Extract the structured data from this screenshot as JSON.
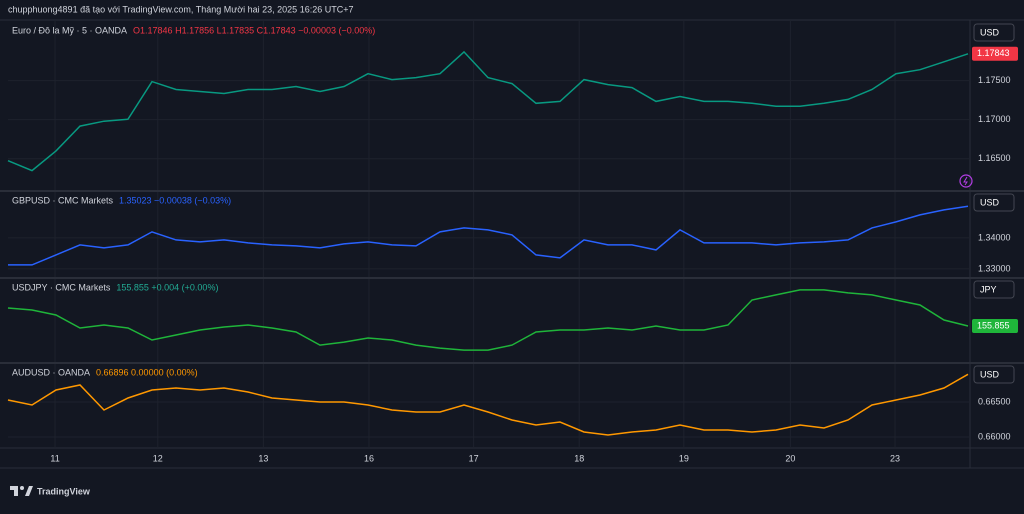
{
  "header": "chupphuong4891 đã tạo với TradingView.com, Tháng Mười hai 23, 2025 16:26 UTC+7",
  "footer": "TradingView",
  "x_axis": {
    "xlim": [
      0,
      100
    ],
    "x": [
      0,
      2.5,
      5,
      7.5,
      10,
      12.5,
      15,
      17.5,
      20,
      22.5,
      25,
      27.5,
      30,
      32.5,
      35,
      37.5,
      40,
      42.5,
      45,
      47.5,
      50,
      52.5,
      55,
      57.5,
      60,
      62.5,
      65,
      67.5,
      70,
      72.5,
      75,
      77.5,
      80,
      82.5,
      85,
      87.5,
      90,
      92.5,
      95,
      97.5,
      100
    ],
    "xticks": [
      {
        "value": 4.9,
        "label": "11"
      },
      {
        "value": 15.6,
        "label": "12"
      },
      {
        "value": 26.6,
        "label": "13"
      },
      {
        "value": 37.6,
        "label": "16"
      },
      {
        "value": 48.5,
        "label": "17"
      },
      {
        "value": 59.5,
        "label": "18"
      },
      {
        "value": 70.4,
        "label": "19"
      },
      {
        "value": 81.5,
        "label": "20"
      },
      {
        "value": 92.4,
        "label": "23"
      }
    ]
  },
  "chart_data": [
    {
      "type": "line",
      "symbol": "Euro / Đô la Mỹ · 5 · OANDA",
      "quote": "O1.17846 H1.17856 L1.17835 C1.17843 −0.00003 (−0.00%)",
      "quote_color": "#f23645",
      "currency": "USD",
      "color": "#089981",
      "ylim": [
        1.161,
        1.1825
      ],
      "yticks": [
        {
          "value": 1.175,
          "label": "1.17500"
        },
        {
          "value": 1.17,
          "label": "1.17000"
        },
        {
          "value": 1.165,
          "label": "1.16500"
        }
      ],
      "last_value": 1.17843,
      "last_color": "#f23645",
      "values": [
        1.16475,
        1.16348,
        1.16601,
        1.16918,
        1.16981,
        1.17006,
        1.17487,
        1.17386,
        1.17361,
        1.17335,
        1.17386,
        1.17386,
        1.17424,
        1.17361,
        1.17424,
        1.17589,
        1.17513,
        1.17538,
        1.17589,
        1.17867,
        1.17538,
        1.17462,
        1.17209,
        1.17234,
        1.17513,
        1.17449,
        1.17411,
        1.17234,
        1.17297,
        1.17234,
        1.17234,
        1.17209,
        1.17171,
        1.17171,
        1.17209,
        1.17259,
        1.17386,
        1.17589,
        1.17639,
        1.17741,
        1.17843
      ]
    },
    {
      "type": "line",
      "symbol": "GBPUSD · CMC Markets",
      "quote": "1.35023  −0.00038 (−0.03%)",
      "quote_color": "#2962ff",
      "currency": "USD",
      "color": "#2962ff",
      "ylim": [
        1.3274,
        1.3548
      ],
      "yticks": [
        {
          "value": 1.34,
          "label": "1.34000"
        },
        {
          "value": 1.33,
          "label": "1.33000"
        }
      ],
      "values": [
        1.33129,
        1.33129,
        1.33452,
        1.33774,
        1.33677,
        1.33774,
        1.34194,
        1.33935,
        1.33871,
        1.33935,
        1.33839,
        1.33774,
        1.33742,
        1.33677,
        1.33806,
        1.33871,
        1.33774,
        1.33742,
        1.34194,
        1.34323,
        1.34258,
        1.34097,
        1.33452,
        1.33355,
        1.33935,
        1.33774,
        1.33774,
        1.33613,
        1.34258,
        1.33839,
        1.33839,
        1.33839,
        1.33774,
        1.33839,
        1.33871,
        1.33935,
        1.34323,
        1.34516,
        1.34742,
        1.34903,
        1.35023
      ]
    },
    {
      "type": "line",
      "symbol": "USDJPY · CMC Markets",
      "quote": "155.855  +0.004 (+0.00%)",
      "quote_color": "#22ab94",
      "currency": "JPY",
      "color": "#1fb53a",
      "ylim": [
        154.06,
        158.2
      ],
      "yticks": [],
      "last_value": 155.855,
      "last_color": "#1fb53a",
      "values": [
        156.755,
        156.655,
        156.405,
        155.755,
        155.905,
        155.755,
        155.155,
        155.405,
        155.655,
        155.805,
        155.905,
        155.755,
        155.555,
        154.905,
        155.055,
        155.255,
        155.155,
        154.905,
        154.755,
        154.655,
        154.655,
        154.905,
        155.555,
        155.655,
        155.655,
        155.755,
        155.655,
        155.855,
        155.655,
        155.655,
        155.905,
        157.155,
        157.405,
        157.655,
        157.655,
        157.505,
        157.405,
        157.155,
        156.905,
        156.155,
        155.855
      ]
    },
    {
      "type": "line",
      "symbol": "AUDUSD · OANDA",
      "quote": "0.66896  0.00000 (0.00%)",
      "quote_color": "#ff9800",
      "currency": "USD",
      "color": "#ff9800",
      "ylim": [
        0.65857,
        0.67043
      ],
      "yticks": [
        {
          "value": 0.665,
          "label": "0.66500"
        },
        {
          "value": 0.66,
          "label": "0.66000"
        }
      ],
      "values": [
        0.66529,
        0.66457,
        0.66671,
        0.66743,
        0.66386,
        0.66557,
        0.66671,
        0.667,
        0.66671,
        0.667,
        0.66643,
        0.66557,
        0.66529,
        0.665,
        0.665,
        0.66457,
        0.66386,
        0.66357,
        0.66357,
        0.66457,
        0.66357,
        0.66243,
        0.66171,
        0.66214,
        0.66071,
        0.66029,
        0.66071,
        0.661,
        0.66171,
        0.661,
        0.661,
        0.66071,
        0.661,
        0.66171,
        0.66129,
        0.66243,
        0.66457,
        0.66529,
        0.666,
        0.667,
        0.66896
      ]
    }
  ]
}
